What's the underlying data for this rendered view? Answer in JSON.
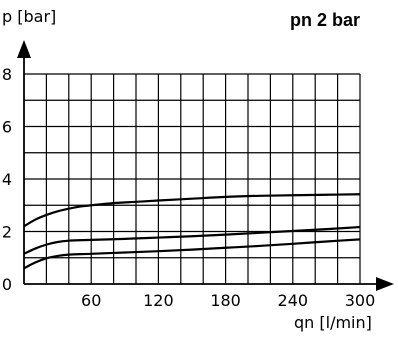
{
  "chart_data": {
    "type": "line",
    "title": "pn 2 bar",
    "xlabel": "qn [l/min]",
    "ylabel": "p  [bar]",
    "xlim": [
      0,
      300
    ],
    "ylim": [
      0,
      8
    ],
    "x_grid_step": 20,
    "y_grid_step": 1,
    "x_ticks": [
      60,
      120,
      180,
      240,
      300
    ],
    "x_tick_labels": [
      "60",
      "120",
      "180",
      "240",
      "300"
    ],
    "y_ticks": [
      0,
      2,
      4,
      6,
      8
    ],
    "y_tick_labels": [
      "0",
      "2",
      "4",
      "6",
      "8"
    ],
    "grid": true,
    "series": [
      {
        "x": [
          0,
          10,
          20,
          30,
          40,
          50,
          60,
          80,
          100,
          120,
          150,
          180,
          210,
          240,
          270,
          300
        ],
        "y": [
          2.2,
          2.45,
          2.63,
          2.77,
          2.87,
          2.95,
          3.0,
          3.08,
          3.13,
          3.18,
          3.25,
          3.32,
          3.36,
          3.38,
          3.4,
          3.42
        ]
      },
      {
        "x": [
          0,
          10,
          20,
          30,
          40,
          60,
          90,
          120,
          150,
          180,
          210,
          240,
          270,
          300
        ],
        "y": [
          1.15,
          1.35,
          1.5,
          1.6,
          1.65,
          1.68,
          1.72,
          1.77,
          1.82,
          1.88,
          1.95,
          2.02,
          2.09,
          2.17
        ]
      },
      {
        "x": [
          0,
          10,
          20,
          30,
          40,
          60,
          90,
          120,
          150,
          180,
          210,
          240,
          270,
          300
        ],
        "y": [
          0.6,
          0.82,
          0.98,
          1.07,
          1.12,
          1.15,
          1.2,
          1.25,
          1.31,
          1.38,
          1.45,
          1.53,
          1.62,
          1.7
        ]
      }
    ]
  }
}
